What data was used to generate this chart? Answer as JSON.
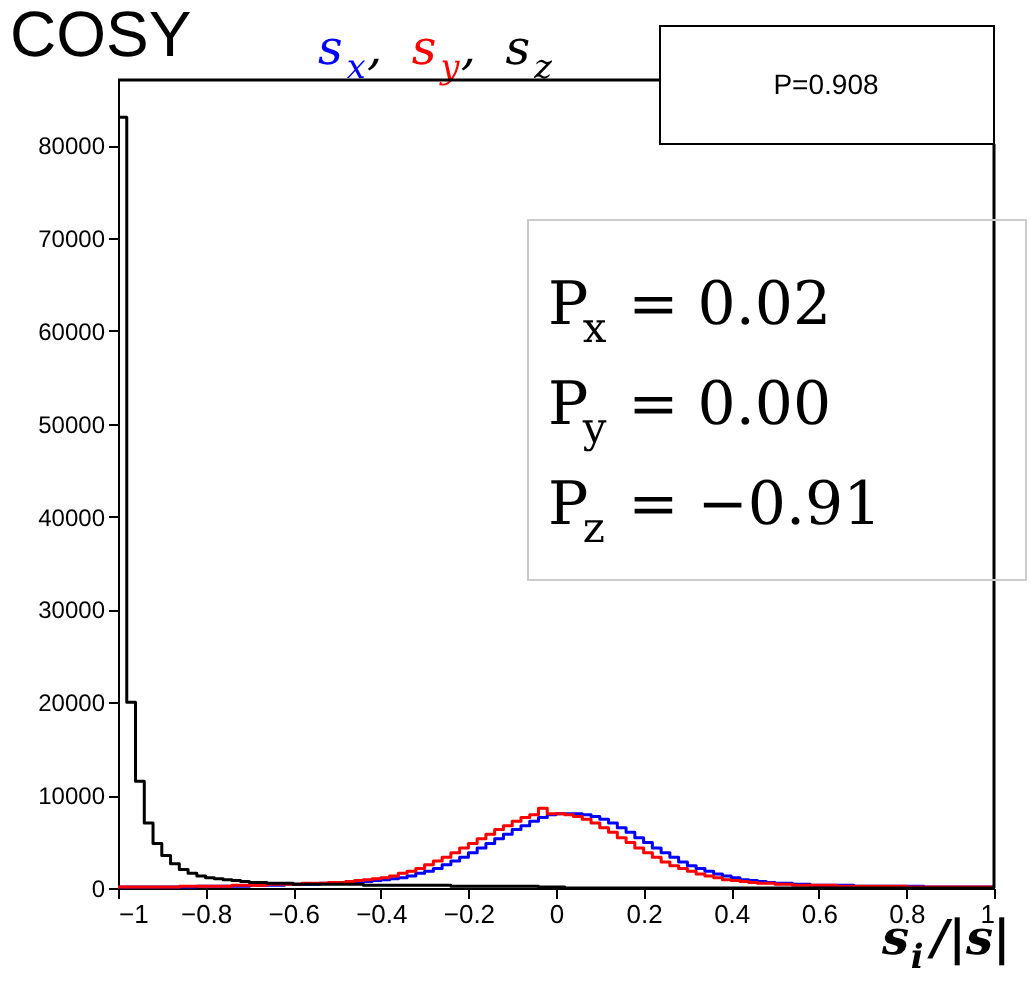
{
  "chart_data": {
    "type": "histogram",
    "title": "COSY",
    "xlabel": "s$_{i}$/|s|",
    "bins": [
      -1.0,
      -0.98,
      -0.96,
      -0.94,
      -0.92,
      -0.9,
      -0.88,
      -0.86,
      -0.84,
      -0.82,
      -0.8,
      -0.78,
      -0.76,
      -0.74,
      -0.72,
      -0.7,
      -0.68,
      -0.66,
      -0.64,
      -0.62,
      -0.6,
      -0.58,
      -0.56,
      -0.54,
      -0.52,
      -0.5,
      -0.48,
      -0.46,
      -0.44,
      -0.42,
      -0.4,
      -0.38,
      -0.36,
      -0.34,
      -0.32,
      -0.3,
      -0.28,
      -0.26,
      -0.24,
      -0.22,
      -0.2,
      -0.18,
      -0.16,
      -0.14,
      -0.12,
      -0.1,
      -0.08,
      -0.06,
      -0.04,
      -0.02,
      0.0,
      0.02,
      0.04,
      0.06,
      0.08,
      0.1,
      0.12,
      0.14,
      0.16,
      0.18,
      0.2,
      0.22,
      0.24,
      0.26,
      0.28,
      0.3,
      0.32,
      0.34,
      0.36,
      0.38,
      0.4,
      0.42,
      0.44,
      0.46,
      0.48,
      0.5,
      0.52,
      0.54,
      0.56,
      0.58,
      0.6,
      0.62,
      0.64,
      0.66,
      0.68,
      0.7,
      0.72,
      0.74,
      0.76,
      0.78,
      0.8,
      0.82,
      0.84,
      0.86,
      0.88,
      0.9,
      0.92,
      0.94,
      0.96,
      0.98,
      1.0
    ],
    "series": [
      {
        "name": "s$_{x}$",
        "color": "#0000ff",
        "values": [
          100,
          100,
          100,
          100,
          100,
          100,
          100,
          100,
          100,
          200,
          200,
          200,
          200,
          200,
          200,
          300,
          300,
          300,
          300,
          400,
          400,
          400,
          400,
          500,
          500,
          500,
          600,
          600,
          700,
          800,
          900,
          1000,
          1100,
          1300,
          1600,
          1800,
          2100,
          2500,
          2900,
          3300,
          3800,
          4300,
          4800,
          5300,
          5800,
          6300,
          6700,
          7200,
          7600,
          7900,
          8000,
          8000,
          8000,
          7900,
          7700,
          7400,
          7000,
          6500,
          6000,
          5400,
          4900,
          4300,
          3800,
          3300,
          2800,
          2400,
          2100,
          1800,
          1500,
          1300,
          1100,
          900,
          800,
          700,
          600,
          500,
          500,
          400,
          400,
          300,
          300,
          300,
          300,
          300,
          200,
          200,
          200,
          200,
          200,
          200,
          200,
          200,
          100,
          100,
          100,
          100,
          100,
          100,
          100,
          100
        ]
      },
      {
        "name": "s$_{y}$",
        "color": "#ff0000",
        "values": [
          100,
          100,
          100,
          100,
          100,
          100,
          100,
          200,
          200,
          200,
          200,
          200,
          200,
          300,
          300,
          300,
          300,
          400,
          400,
          400,
          400,
          500,
          500,
          500,
          600,
          600,
          700,
          800,
          900,
          1000,
          1100,
          1300,
          1600,
          1800,
          2100,
          2500,
          2900,
          3300,
          3800,
          4300,
          4800,
          5300,
          5800,
          6300,
          6700,
          7200,
          7600,
          7900,
          8600,
          8000,
          8000,
          7900,
          7700,
          7400,
          7000,
          6500,
          6000,
          5400,
          4900,
          4300,
          3800,
          3300,
          2800,
          2400,
          2100,
          1800,
          1500,
          1300,
          1100,
          900,
          800,
          700,
          600,
          500,
          500,
          400,
          400,
          300,
          300,
          300,
          300,
          300,
          200,
          200,
          200,
          200,
          200,
          200,
          200,
          200,
          100,
          100,
          100,
          100,
          100,
          100,
          100,
          100,
          100,
          100
        ]
      },
      {
        "name": "s$_{z}$",
        "color": "#000000",
        "values": [
          83000,
          20000,
          11500,
          7000,
          4800,
          3500,
          2600,
          2000,
          1600,
          1300,
          1100,
          1000,
          900,
          800,
          700,
          600,
          600,
          500,
          500,
          500,
          400,
          400,
          400,
          400,
          400,
          400,
          400,
          400,
          300,
          300,
          300,
          300,
          300,
          300,
          300,
          300,
          300,
          300,
          200,
          200,
          200,
          200,
          200,
          200,
          200,
          200,
          200,
          200,
          100,
          100,
          100,
          0,
          0,
          0,
          0,
          0,
          0,
          0,
          0,
          0,
          0,
          0,
          0,
          0,
          0,
          0,
          0,
          0,
          0,
          0,
          0,
          0,
          0,
          0,
          0,
          0,
          0,
          0,
          0,
          0,
          0,
          0,
          0,
          0,
          0,
          0,
          0,
          0,
          0,
          0,
          0,
          0,
          0,
          0,
          0,
          0,
          0,
          0,
          0,
          0
        ]
      }
    ],
    "xlim": [
      -1,
      1
    ],
    "xticks": [
      -1,
      -0.8,
      -0.6,
      -0.4,
      -0.2,
      0,
      0.2,
      0.4,
      0.6,
      0.8,
      1
    ],
    "ylim": [
      0,
      87000
    ],
    "yticks": [
      0,
      10000,
      20000,
      30000,
      40000,
      50000,
      60000,
      70000,
      80000
    ],
    "legend": "top",
    "grid": false,
    "annotations": [
      "P=0.908",
      "P$_{x}$ = 0.02",
      "P$_{y}$ = 0.00",
      "P$_{z}$ = −0.91",
      ",",
      ","
    ]
  }
}
